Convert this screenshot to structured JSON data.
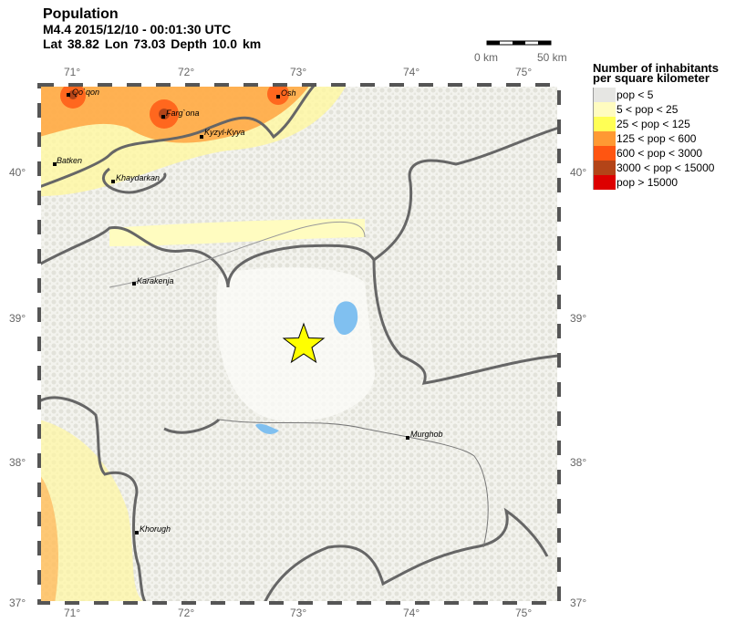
{
  "header": {
    "title": "Population",
    "event": "M4.4  2015/12/10 - 00:01:30 UTC",
    "location": "Lat 38.82    Lon  73.03     Depth  10.0 km"
  },
  "scale_bar": {
    "start": "0 km",
    "end": "50 km"
  },
  "axes": {
    "lon_ticks": [
      "71°",
      "72°",
      "73°",
      "74°",
      "75°"
    ],
    "lat_ticks": [
      "40°",
      "39°",
      "38°",
      "37°"
    ]
  },
  "legend": {
    "title_line1": "Number of inhabitants",
    "title_line2": "per square kilometer",
    "items": [
      {
        "label": "pop < 5",
        "color": "#e6e6e3"
      },
      {
        "label": "5 < pop < 25",
        "color": "#fffcc0"
      },
      {
        "label": "25 < pop < 125",
        "color": "#ffff55"
      },
      {
        "label": "125 < pop < 600",
        "color": "#ff9933"
      },
      {
        "label": "600 < pop < 3000",
        "color": "#ff5511"
      },
      {
        "label": "3000 < pop < 15000",
        "color": "#b34418"
      },
      {
        "label": "pop > 15000",
        "color": "#dd0000"
      }
    ]
  },
  "cities": [
    "Qo`qon",
    "Farg`ona",
    "Osh",
    "Kyzyl-Kyya",
    "Batken",
    "Khaydarkan",
    "Karakenja",
    "Murghob",
    "Khorugh"
  ],
  "epicenter": {
    "lat": 38.82,
    "lon": 73.03,
    "marker": "star-icon",
    "color": "#ffff00"
  }
}
